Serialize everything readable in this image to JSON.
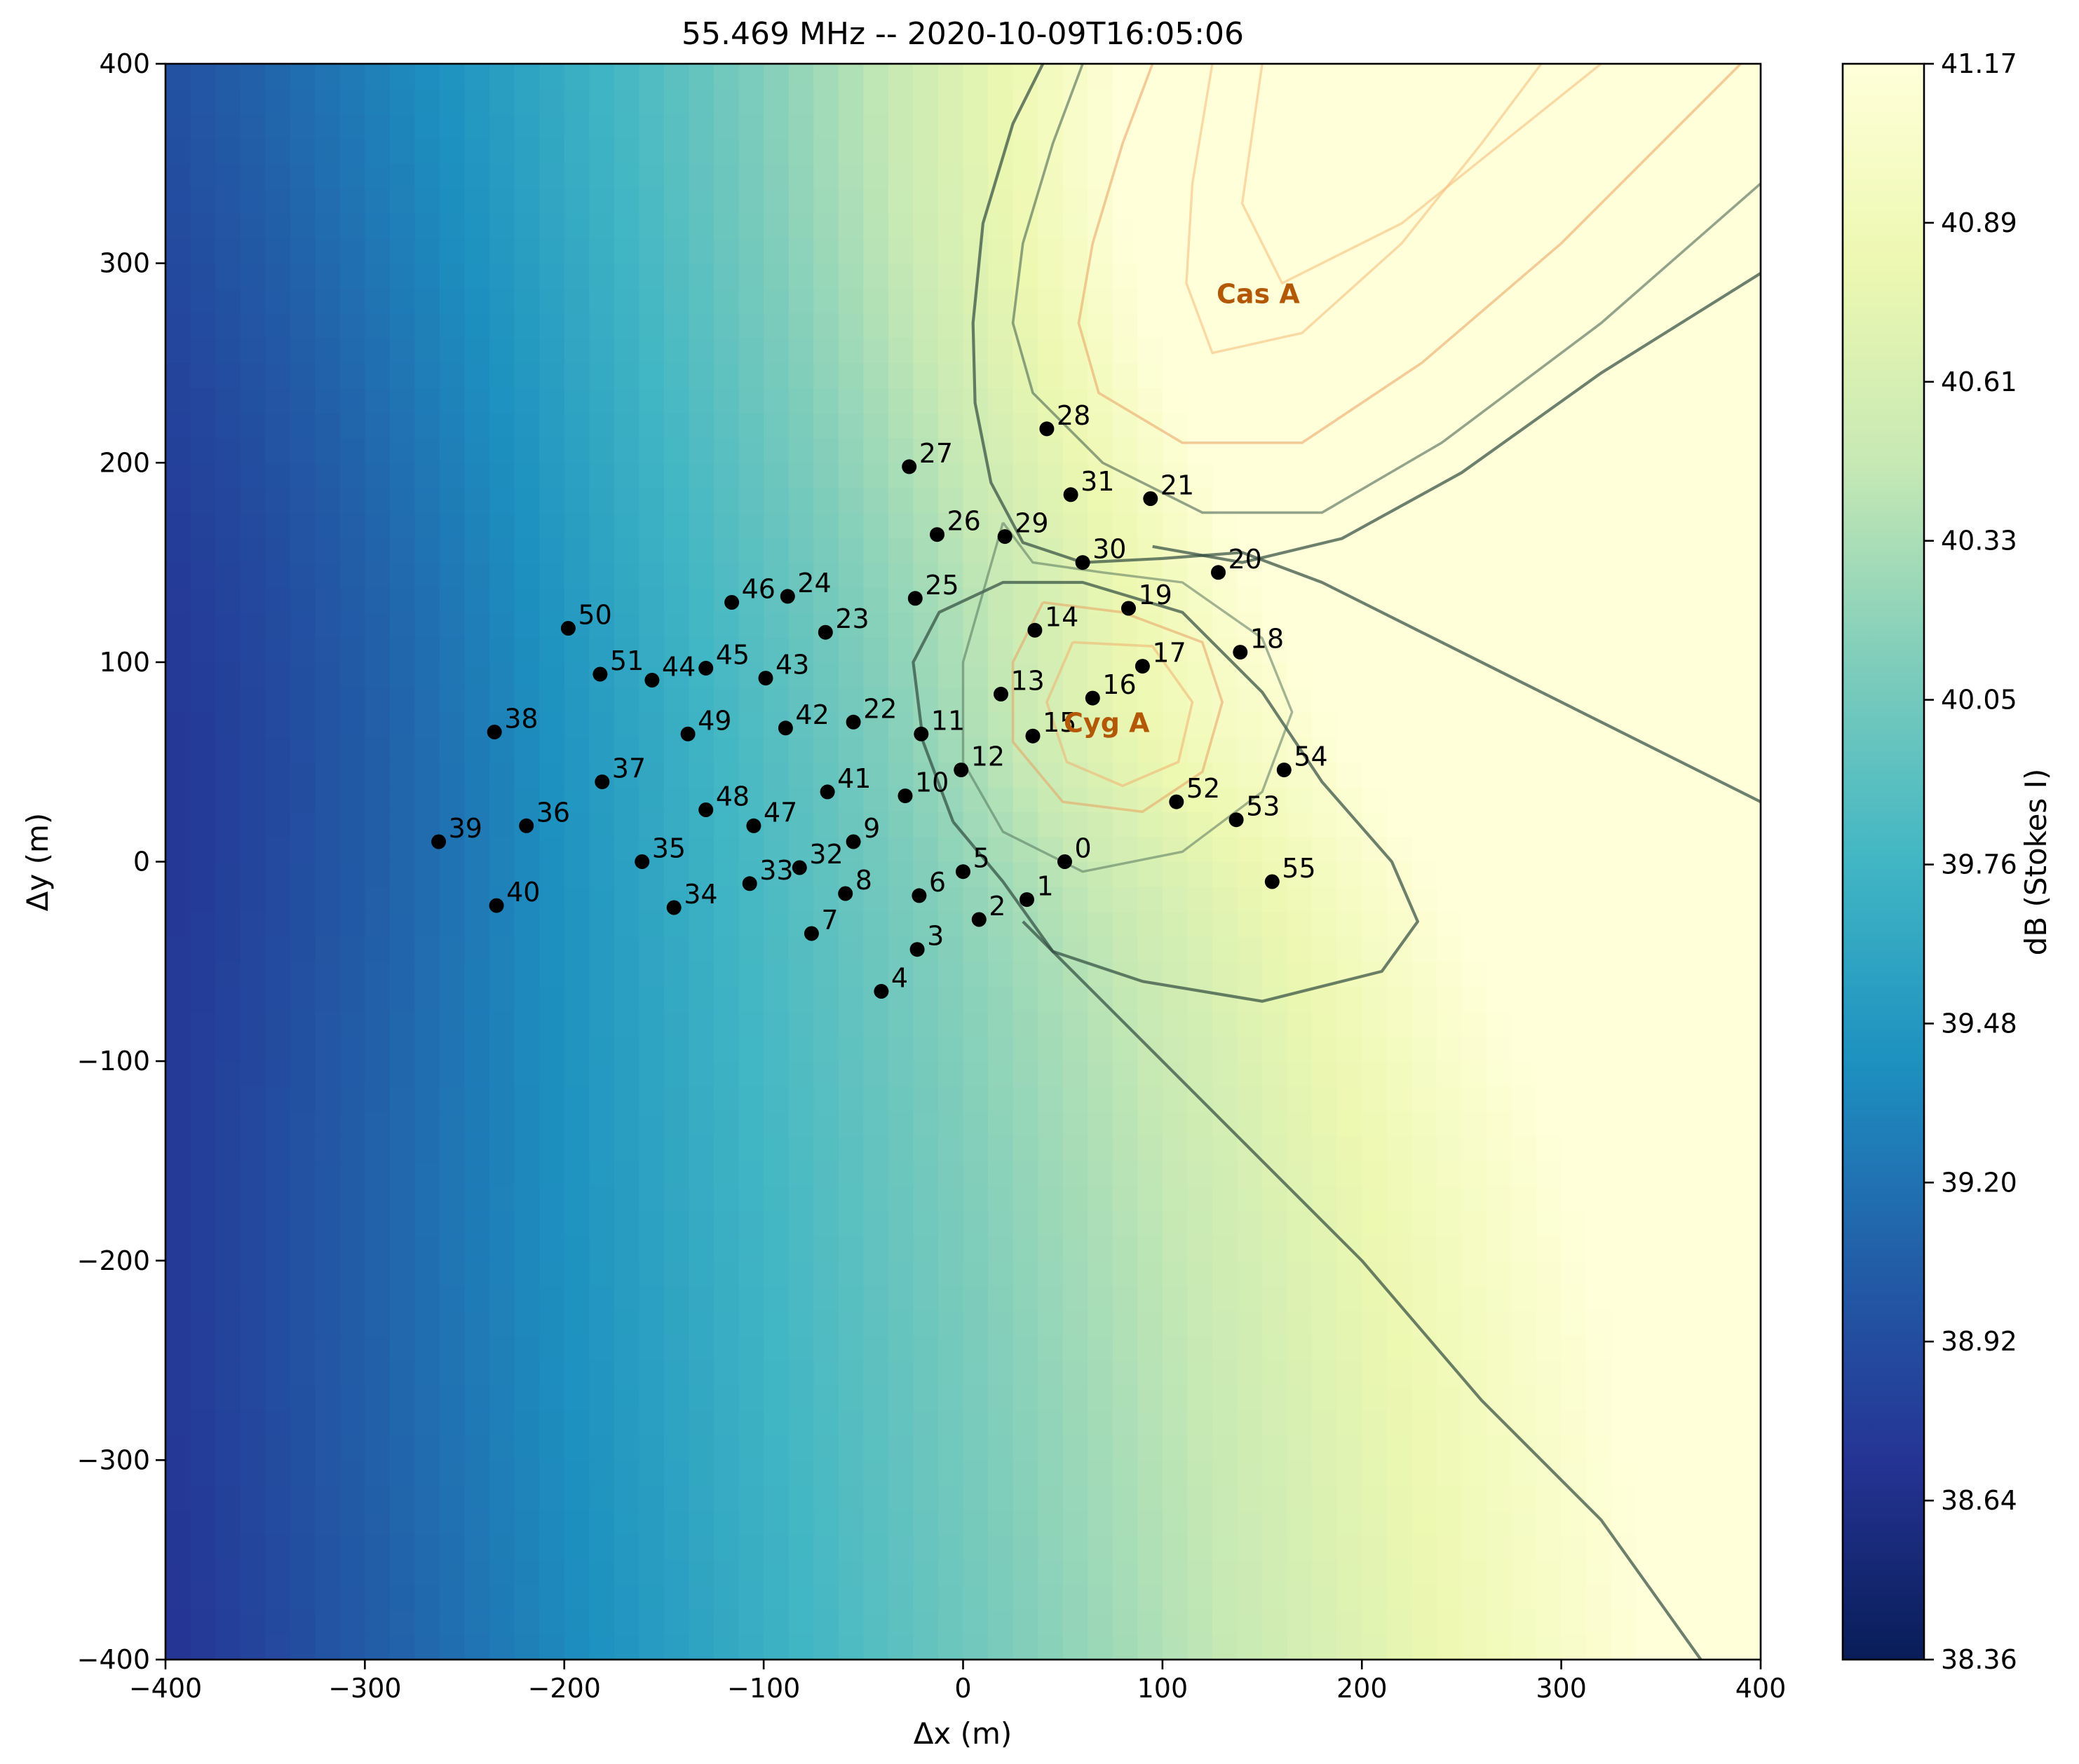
{
  "chart_data": {
    "type": "heatmap",
    "title": "55.469 MHz -- 2020-10-09T16:05:06",
    "xlabel": "Δx (m)",
    "ylabel": "Δy (m)",
    "xlim": [
      -400,
      400
    ],
    "ylim": [
      -400,
      400
    ],
    "x_ticks": [
      "−400",
      "−300",
      "−200",
      "−100",
      "0",
      "100",
      "200",
      "300",
      "400"
    ],
    "y_ticks": [
      "−400",
      "−300",
      "−200",
      "−100",
      "0",
      "100",
      "200",
      "300",
      "400"
    ],
    "colormap": "YlGnBu_r",
    "colorbar": {
      "label": "dB (Stokes I)",
      "range": [
        38.36,
        41.17
      ],
      "ticks": [
        "38.36",
        "38.64",
        "38.92",
        "39.20",
        "39.48",
        "39.76",
        "40.05",
        "40.33",
        "40.61",
        "40.89",
        "41.17"
      ]
    },
    "sources": [
      {
        "name": "Cas A",
        "x": 148,
        "y": 285,
        "color": "#b35806"
      },
      {
        "name": "Cyg A",
        "x": 72,
        "y": 70,
        "color": "#b35806"
      }
    ],
    "stations": [
      {
        "label": "0",
        "x": 51,
        "y": 0
      },
      {
        "label": "1",
        "x": 32,
        "y": -19
      },
      {
        "label": "2",
        "x": 8,
        "y": -29
      },
      {
        "label": "3",
        "x": -23,
        "y": -44
      },
      {
        "label": "4",
        "x": -41,
        "y": -65
      },
      {
        "label": "5",
        "x": 0,
        "y": -5
      },
      {
        "label": "6",
        "x": -22,
        "y": -17
      },
      {
        "label": "7",
        "x": -76,
        "y": -36
      },
      {
        "label": "8",
        "x": -59,
        "y": -16
      },
      {
        "label": "9",
        "x": -55,
        "y": 10
      },
      {
        "label": "10",
        "x": -29,
        "y": 33
      },
      {
        "label": "11",
        "x": -21,
        "y": 64
      },
      {
        "label": "12",
        "x": -1,
        "y": 46
      },
      {
        "label": "13",
        "x": 19,
        "y": 84
      },
      {
        "label": "14",
        "x": 36,
        "y": 116
      },
      {
        "label": "15",
        "x": 35,
        "y": 63
      },
      {
        "label": "16",
        "x": 65,
        "y": 82
      },
      {
        "label": "17",
        "x": 90,
        "y": 98
      },
      {
        "label": "18",
        "x": 139,
        "y": 105
      },
      {
        "label": "19",
        "x": 83,
        "y": 127
      },
      {
        "label": "20",
        "x": 128,
        "y": 145
      },
      {
        "label": "21",
        "x": 94,
        "y": 182
      },
      {
        "label": "22",
        "x": -55,
        "y": 70
      },
      {
        "label": "23",
        "x": -69,
        "y": 115
      },
      {
        "label": "24",
        "x": -88,
        "y": 133
      },
      {
        "label": "25",
        "x": -24,
        "y": 132
      },
      {
        "label": "26",
        "x": -13,
        "y": 164
      },
      {
        "label": "27",
        "x": -27,
        "y": 198
      },
      {
        "label": "28",
        "x": 42,
        "y": 217
      },
      {
        "label": "29",
        "x": 21,
        "y": 163
      },
      {
        "label": "30",
        "x": 60,
        "y": 150
      },
      {
        "label": "31",
        "x": 54,
        "y": 184
      },
      {
        "label": "32",
        "x": -82,
        "y": -3
      },
      {
        "label": "33",
        "x": -107,
        "y": -11
      },
      {
        "label": "34",
        "x": -145,
        "y": -23
      },
      {
        "label": "35",
        "x": -161,
        "y": 0
      },
      {
        "label": "36",
        "x": -219,
        "y": 18
      },
      {
        "label": "37",
        "x": -181,
        "y": 40
      },
      {
        "label": "38",
        "x": -235,
        "y": 65
      },
      {
        "label": "39",
        "x": -263,
        "y": 10
      },
      {
        "label": "40",
        "x": -234,
        "y": -22
      },
      {
        "label": "41",
        "x": -68,
        "y": 35
      },
      {
        "label": "42",
        "x": -89,
        "y": 67
      },
      {
        "label": "43",
        "x": -99,
        "y": 92
      },
      {
        "label": "44",
        "x": -156,
        "y": 91
      },
      {
        "label": "45",
        "x": -129,
        "y": 97
      },
      {
        "label": "46",
        "x": -116,
        "y": 130
      },
      {
        "label": "47",
        "x": -105,
        "y": 18
      },
      {
        "label": "48",
        "x": -129,
        "y": 26
      },
      {
        "label": "49",
        "x": -138,
        "y": 64
      },
      {
        "label": "50",
        "x": -198,
        "y": 117
      },
      {
        "label": "51",
        "x": -182,
        "y": 94
      },
      {
        "label": "52",
        "x": 107,
        "y": 30
      },
      {
        "label": "53",
        "x": 137,
        "y": 21
      },
      {
        "label": "54",
        "x": 161,
        "y": 46
      },
      {
        "label": "55",
        "x": 155,
        "y": -10
      }
    ]
  }
}
